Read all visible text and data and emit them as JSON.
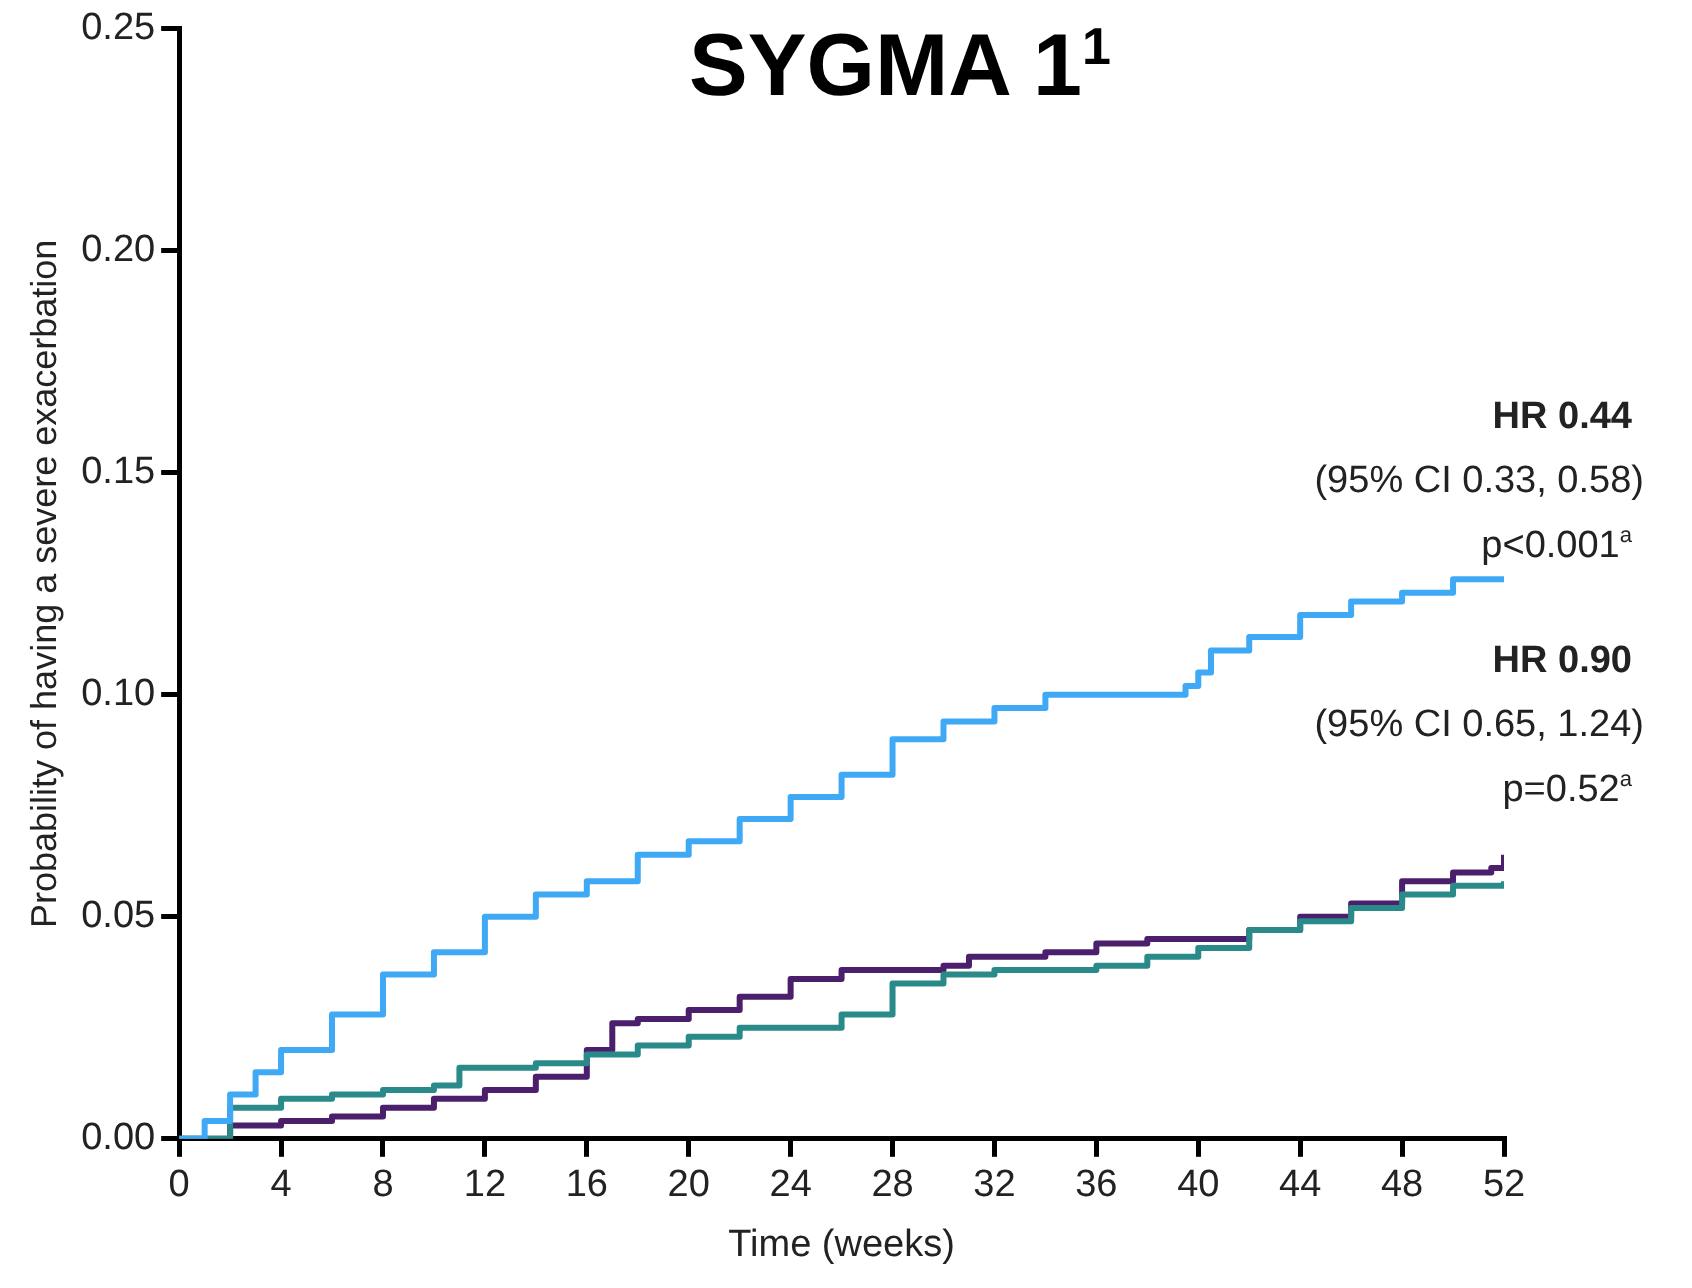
{
  "chart_data": {
    "type": "step",
    "title": "SYGMA 1$^{1}$",
    "xlabel": "Time (weeks)",
    "ylabel": "Probability of having a severe exacerbation",
    "xlim": [
      0,
      52
    ],
    "xticks": [
      0,
      4,
      8,
      12,
      16,
      20,
      24,
      28,
      32,
      36,
      40,
      44,
      48,
      52
    ],
    "ylim": [
      0,
      0.25
    ],
    "yticks": [
      {
        "value": 0,
        "label": "0.00"
      },
      {
        "value": 0.05,
        "label": "0.05"
      },
      {
        "value": 0.1,
        "label": "0.10"
      },
      {
        "value": 0.15,
        "label": "0.15"
      },
      {
        "value": 0.2,
        "label": "0.20"
      },
      {
        "value": 0.25,
        "label": "0.25"
      }
    ],
    "grid": false,
    "legend": false,
    "marker": "none",
    "line_style": "solid",
    "series": [
      {
        "color": "#3fa9f5",
        "x": [
          0,
          1,
          2,
          3,
          4,
          6,
          8,
          10,
          12,
          14,
          16,
          18,
          20,
          22,
          24,
          26,
          28,
          30,
          32,
          34,
          36,
          38,
          39.5,
          40,
          40.5,
          42,
          44,
          46,
          48,
          50,
          52
        ],
        "values": [
          0,
          0.004,
          0.01,
          0.015,
          0.02,
          0.028,
          0.037,
          0.042,
          0.05,
          0.055,
          0.058,
          0.064,
          0.067,
          0.072,
          0.077,
          0.082,
          0.09,
          0.094,
          0.097,
          0.1,
          0.1,
          0.1,
          0.102,
          0.105,
          0.11,
          0.113,
          0.118,
          0.121,
          0.123,
          0.126,
          0.126
        ]
      },
      {
        "color": "#2a8a8a",
        "x": [
          0,
          2,
          4,
          6,
          8,
          10,
          11,
          14,
          16,
          18,
          20,
          22,
          24,
          26,
          28,
          30,
          32,
          34,
          36,
          38,
          40,
          42,
          44,
          46,
          48,
          50,
          52
        ],
        "values": [
          0,
          0.007,
          0.009,
          0.01,
          0.011,
          0.012,
          0.016,
          0.017,
          0.019,
          0.021,
          0.023,
          0.025,
          0.025,
          0.028,
          0.035,
          0.037,
          0.038,
          0.038,
          0.039,
          0.041,
          0.043,
          0.047,
          0.049,
          0.052,
          0.055,
          0.057,
          0.058
        ]
      },
      {
        "color": "#4b1f6b",
        "x": [
          0,
          2,
          4,
          6,
          8,
          10,
          12,
          14,
          16,
          17,
          18,
          20,
          22,
          24,
          26,
          28,
          30,
          31,
          34,
          36,
          38,
          40,
          42,
          44,
          46,
          48,
          50,
          51.5,
          52
        ],
        "values": [
          0,
          0.003,
          0.004,
          0.005,
          0.007,
          0.009,
          0.011,
          0.014,
          0.02,
          0.026,
          0.027,
          0.029,
          0.032,
          0.036,
          0.038,
          0.038,
          0.039,
          0.041,
          0.042,
          0.044,
          0.045,
          0.045,
          0.047,
          0.05,
          0.053,
          0.058,
          0.06,
          0.061,
          0.064
        ]
      }
    ],
    "annotations": [
      "HR 0.44",
      "(95% CI 0.33, 0.58)",
      "p<0.001$^{a}$",
      "HR 0.90",
      "(95% CI 0.65, 1.24)",
      "p=0.52$^{a}$"
    ]
  }
}
